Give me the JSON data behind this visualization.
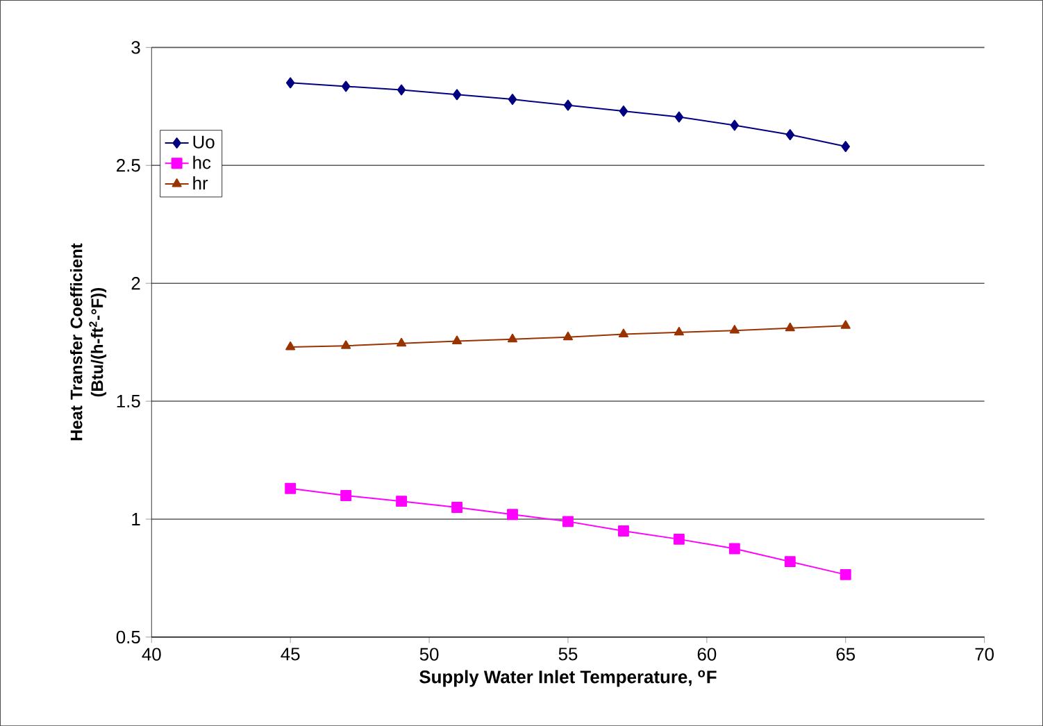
{
  "chart_data": {
    "type": "line",
    "xlabel": "Supply Water Inlet Temperature, $^{o}$F",
    "ylabel": "Heat Transfer Coefficient (Btu/(h-ft$^{2}$-°F))",
    "x": [
      45,
      47,
      49,
      51,
      53,
      55,
      57,
      59,
      61,
      63,
      65
    ],
    "series": [
      {
        "name": "Uo",
        "color": "#000080",
        "marker": "diamond",
        "values": [
          2.85,
          2.835,
          2.82,
          2.8,
          2.78,
          2.755,
          2.73,
          2.705,
          2.67,
          2.63,
          2.58
        ]
      },
      {
        "name": "hc",
        "color": "#ff00ff",
        "marker": "square",
        "values": [
          1.13,
          1.1,
          1.076,
          1.05,
          1.02,
          0.99,
          0.95,
          0.915,
          0.875,
          0.82,
          0.765
        ]
      },
      {
        "name": "hr",
        "color": "#993300",
        "marker": "triangle",
        "values": [
          1.73,
          1.735,
          1.745,
          1.755,
          1.763,
          1.772,
          1.784,
          1.792,
          1.8,
          1.81,
          1.82
        ]
      }
    ],
    "xlim": [
      40,
      70
    ],
    "ylim": [
      0.5,
      3
    ],
    "xticks": [
      40,
      45,
      50,
      55,
      60,
      65,
      70
    ],
    "yticks": [
      0.5,
      1,
      1.5,
      2,
      2.5,
      3
    ],
    "grid": "y",
    "legend": "top left",
    "line_style": "solid"
  }
}
